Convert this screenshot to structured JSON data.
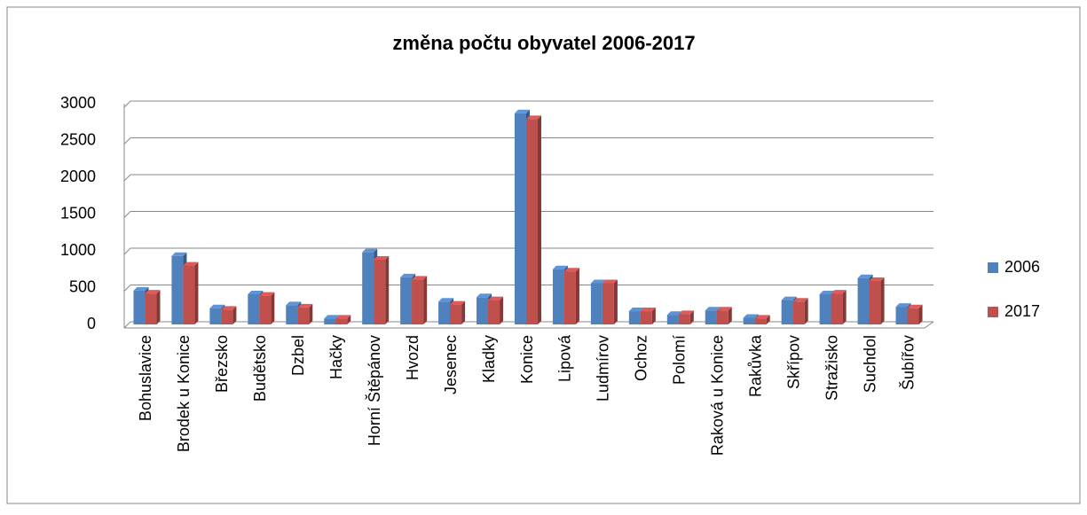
{
  "chart_data": {
    "type": "bar",
    "title": "změna počtu obyvatel 2006-2017",
    "categories": [
      "Bohuslavice",
      "Brodek u Konice",
      "Březsko",
      "Budětsko",
      "Dzbel",
      "Hačky",
      "Horní Štěpánov",
      "Hvozd",
      "Jesenec",
      "Kladky",
      "Konice",
      "Lipová",
      "Ludmírov",
      "Ochoz",
      "Polomí",
      "Raková u Konice",
      "Rakůvka",
      "Skřípov",
      "Stražisko",
      "Suchdol",
      "Šubířov"
    ],
    "series": [
      {
        "name": "2006",
        "color": "#4f81bd",
        "values": [
          460,
          930,
          220,
          410,
          260,
          80,
          980,
          640,
          310,
          370,
          2870,
          750,
          560,
          180,
          130,
          190,
          90,
          330,
          410,
          630,
          240
        ]
      },
      {
        "name": "2017",
        "color": "#c0504d",
        "values": [
          420,
          800,
          200,
          390,
          230,
          80,
          880,
          610,
          270,
          330,
          2790,
          720,
          560,
          180,
          140,
          190,
          80,
          310,
          420,
          590,
          220
        ]
      }
    ],
    "ylim": [
      0,
      3000
    ],
    "yticks": [
      0,
      500,
      1000,
      1500,
      2000,
      2500,
      3000
    ],
    "grid": true,
    "legend": "right"
  }
}
